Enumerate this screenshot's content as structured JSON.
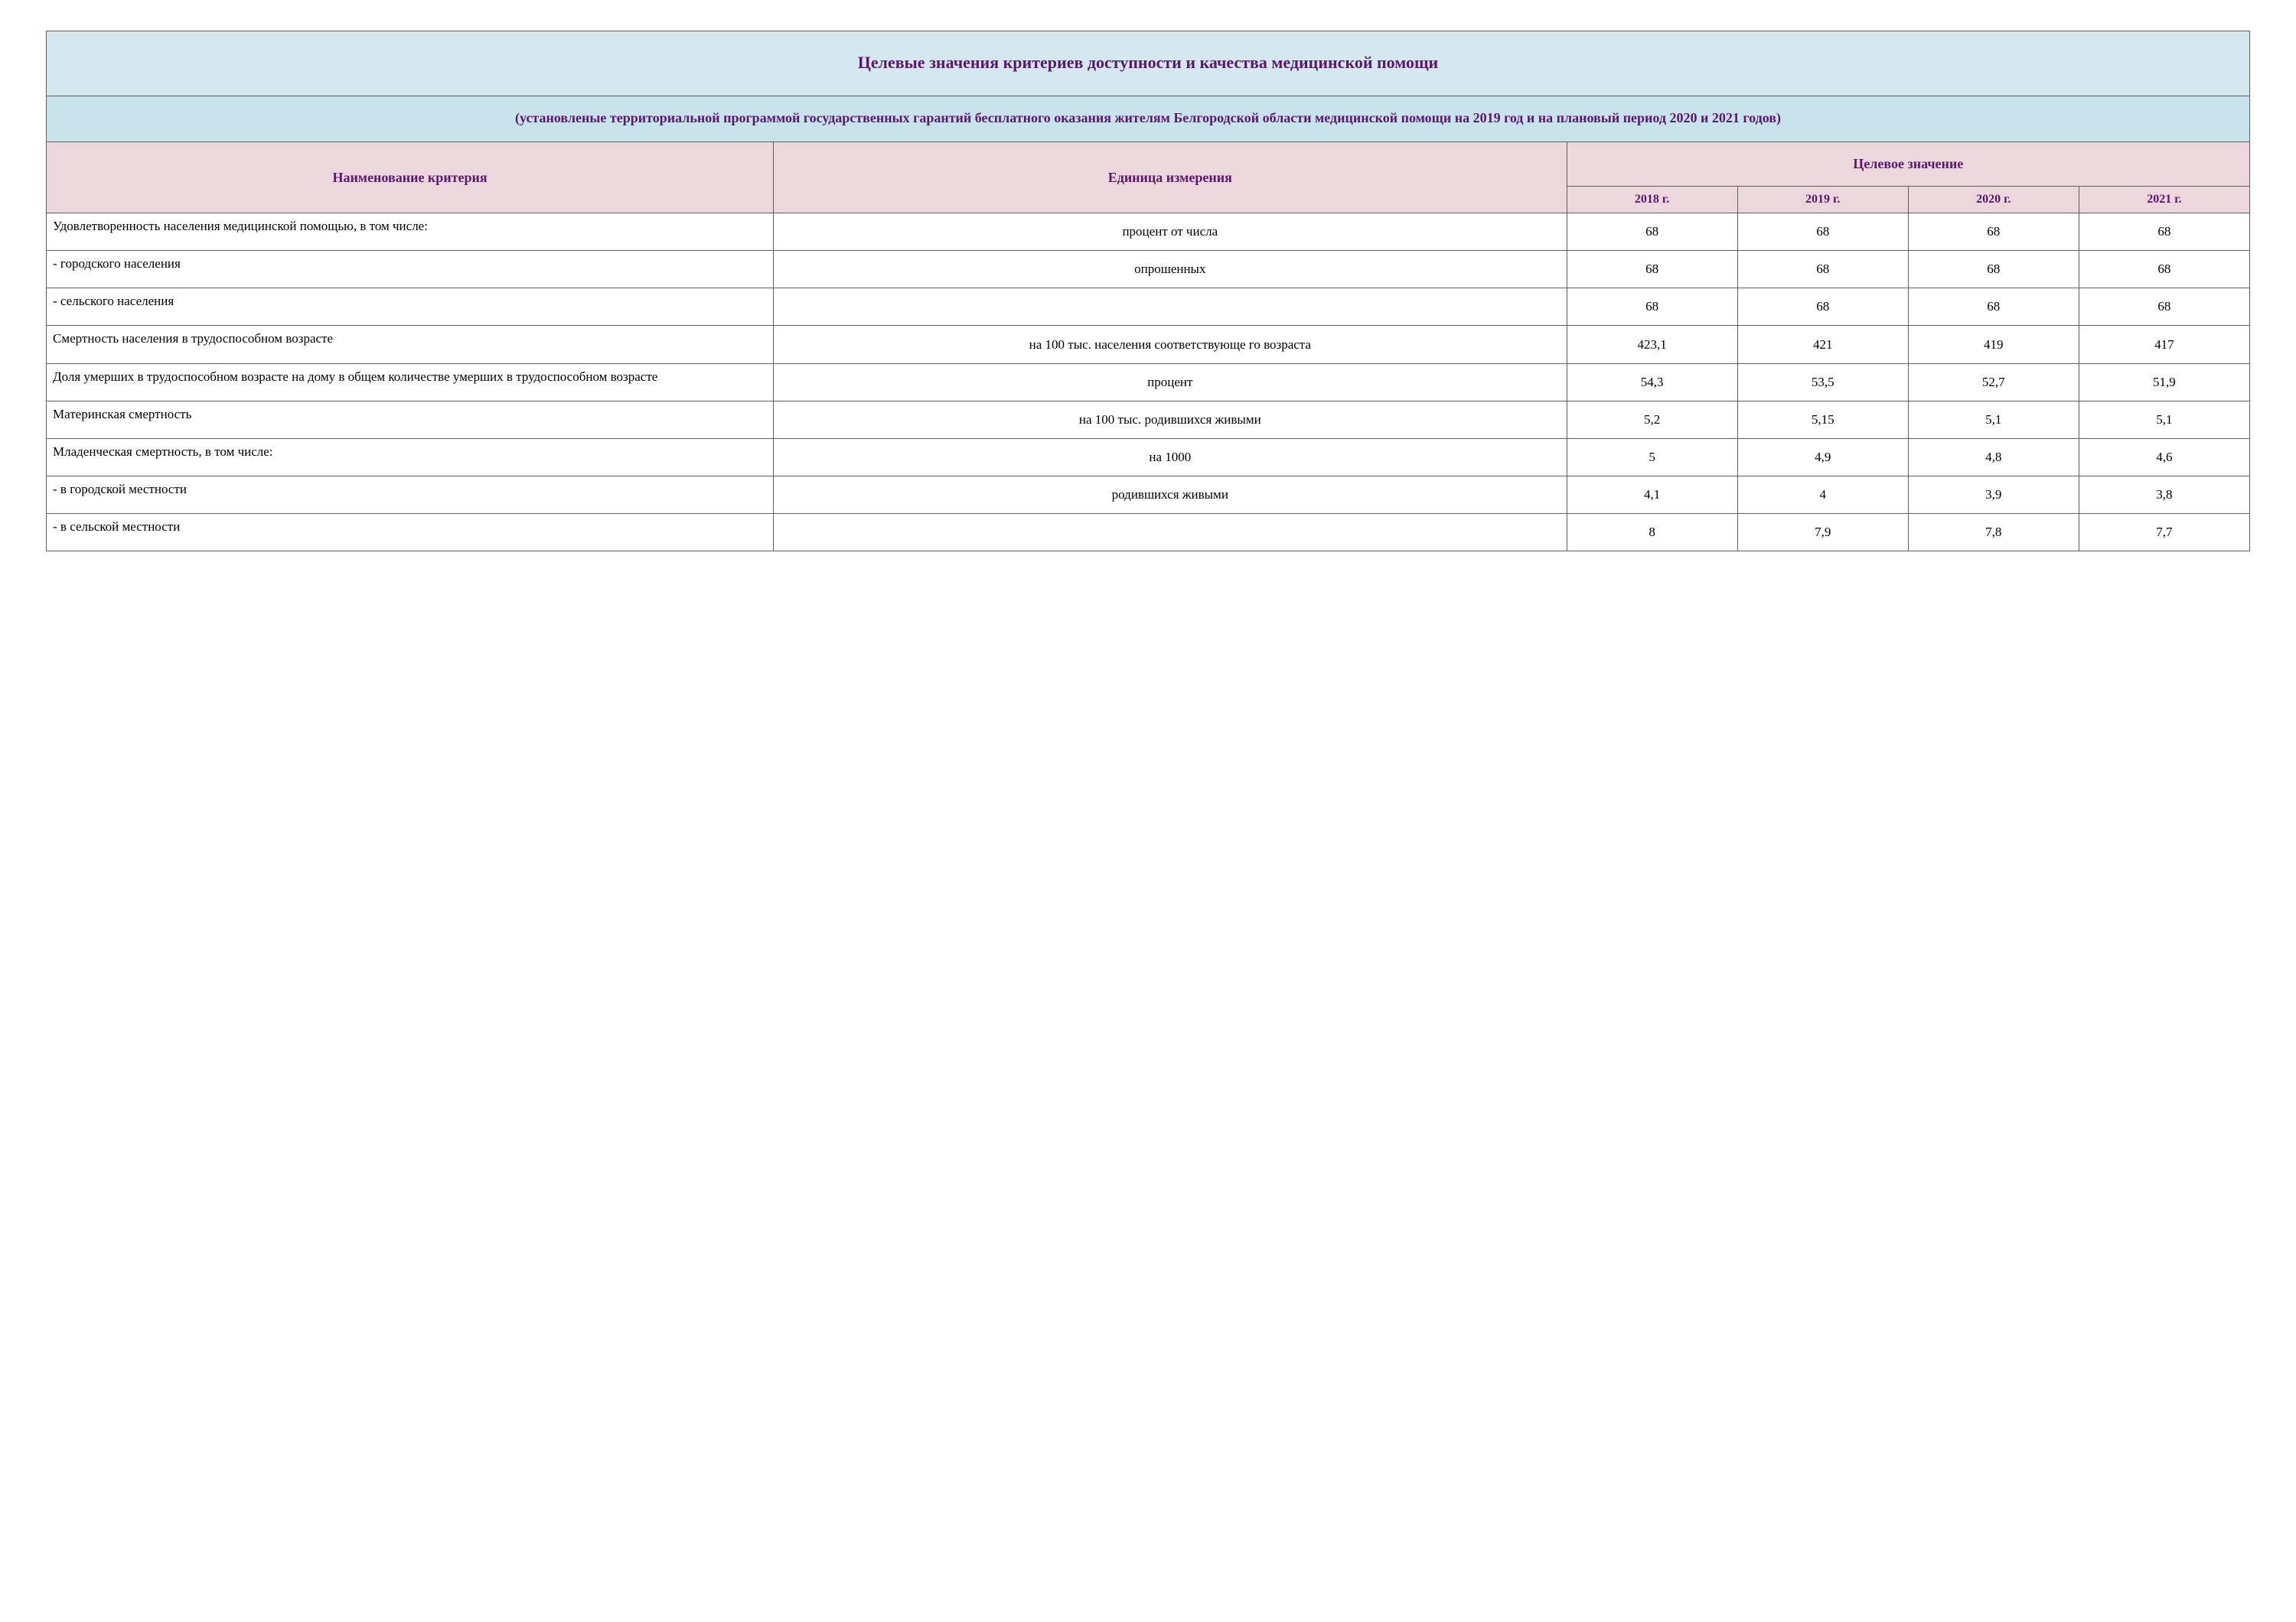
{
  "title": "Целевые значения критериев доступности и качества медицинской помощи",
  "subtitle": "(установленые территориальной программой государственных гарантий бесплатного оказания жителям Белгородской области медицинской помощи на 2019 год и на плановый период 2020 и 2021 годов)",
  "headers": {
    "criterion": "Наименование критерия",
    "unit": "Единица измерения",
    "target": "Целевое значение",
    "years": [
      "2018 г.",
      "2019 г.",
      "2020 г.",
      "2021 г."
    ]
  },
  "rows": [
    {
      "criterion": "Удовлетворенность населения медицинской помощью, в том числе:",
      "justify": true,
      "unit": "процент от числа",
      "values": [
        "68",
        "68",
        "68",
        "68"
      ]
    },
    {
      "criterion": "- городского населения",
      "unit": "опрошенных",
      "values": [
        "68",
        "68",
        "68",
        "68"
      ]
    },
    {
      "criterion": "- сельского населения",
      "unit": "",
      "values": [
        "68",
        "68",
        "68",
        "68"
      ]
    },
    {
      "criterion": "Смертность населения в трудоспособном возрасте",
      "unit": "на 100 тыс. населения соответствующе го возраста",
      "values": [
        "423,1",
        "421",
        "419",
        "417"
      ]
    },
    {
      "criterion": "Доля умерших в трудоспособном возрасте на дому в общем количестве умерших в трудоспособном возрасте",
      "unit": "процент",
      "values": [
        "54,3",
        "53,5",
        "52,7",
        "51,9"
      ]
    },
    {
      "criterion": "Материнская смертность",
      "unit": "на 100 тыс. родившихся живыми",
      "values": [
        "5,2",
        "5,15",
        "5,1",
        "5,1"
      ]
    },
    {
      "criterion": "Младенческая смертность, в том числе:",
      "unit": "на 1000",
      "values": [
        "5",
        "4,9",
        "4,8",
        "4,6"
      ]
    },
    {
      "criterion": "- в городской местности",
      "unit": "родившихся живыми",
      "values": [
        "4,1",
        "4",
        "3,9",
        "3,8"
      ]
    },
    {
      "criterion": "- в сельской местности",
      "unit": "",
      "values": [
        "8",
        "7,9",
        "7,8",
        "7,7"
      ]
    }
  ],
  "colors": {
    "title_bg": "#d6e8ef",
    "subtitle_bg": "#c9e3ec",
    "header_bg": "#ecd8dc",
    "header_fg": "#5b166f",
    "border": "#606060"
  }
}
